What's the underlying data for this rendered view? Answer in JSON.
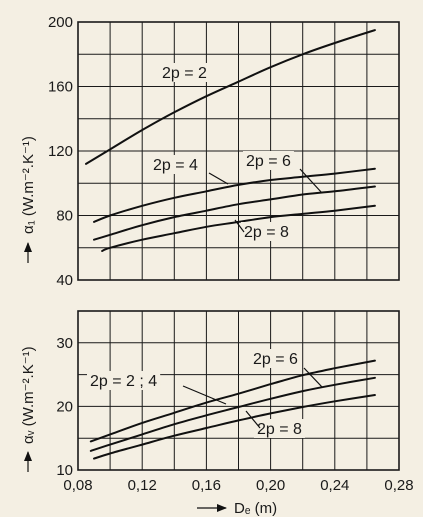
{
  "chart_data": [
    {
      "type": "line",
      "ylabel": "α₁ (W.m⁻².K⁻¹)",
      "ylim": [
        40,
        200
      ],
      "yticks": [
        40,
        80,
        120,
        160,
        200
      ],
      "xlim": [
        0.08,
        0.28
      ],
      "grid": true,
      "series": [
        {
          "name": "2p = 2",
          "x": [
            0.085,
            0.1,
            0.12,
            0.14,
            0.16,
            0.18,
            0.2,
            0.22,
            0.24,
            0.265
          ],
          "values": [
            112,
            121,
            133,
            144,
            154,
            163,
            172,
            180,
            187,
            195
          ]
        },
        {
          "name": "2p = 4",
          "x": [
            0.09,
            0.1,
            0.12,
            0.14,
            0.16,
            0.18,
            0.2,
            0.22,
            0.24,
            0.265
          ],
          "values": [
            76,
            80,
            86,
            91,
            95,
            99,
            102,
            104,
            106,
            109
          ]
        },
        {
          "name": "2p = 6",
          "x": [
            0.09,
            0.1,
            0.12,
            0.14,
            0.16,
            0.18,
            0.2,
            0.22,
            0.24,
            0.265
          ],
          "values": [
            65,
            68,
            74,
            79,
            83,
            87,
            90,
            93,
            95,
            98
          ]
        },
        {
          "name": "2p = 8",
          "x": [
            0.095,
            0.1,
            0.12,
            0.14,
            0.16,
            0.18,
            0.2,
            0.22,
            0.24,
            0.265
          ],
          "values": [
            58,
            60,
            65,
            69,
            73,
            76,
            79,
            81,
            83,
            86
          ]
        }
      ]
    },
    {
      "type": "line",
      "xlabel": "Dₑ (m)",
      "ylabel": "αᵥ (W.m⁻².K⁻¹)",
      "ylim": [
        10,
        35
      ],
      "yticks": [
        10,
        20,
        30
      ],
      "xlim": [
        0.08,
        0.28
      ],
      "xticks": [
        "0,08",
        "0,12",
        "0,16",
        "0,20",
        "0,24",
        "0,28"
      ],
      "xtick_values": [
        0.08,
        0.12,
        0.16,
        0.2,
        0.24,
        0.28
      ],
      "grid": true,
      "series": [
        {
          "name": "2p = 2 ; 4",
          "x": [
            0.088,
            0.1,
            0.12,
            0.14,
            0.16,
            0.18,
            0.2,
            0.22,
            0.24,
            0.265
          ],
          "values": [
            14.5,
            15.6,
            17.4,
            19.0,
            20.6,
            22.0,
            23.5,
            24.9,
            26.0,
            27.2
          ]
        },
        {
          "name": "2p = 6",
          "x": [
            0.088,
            0.1,
            0.12,
            0.14,
            0.16,
            0.18,
            0.2,
            0.22,
            0.24,
            0.265
          ],
          "values": [
            13.0,
            14.0,
            15.6,
            17.2,
            18.6,
            19.9,
            21.2,
            22.4,
            23.4,
            24.5
          ]
        },
        {
          "name": "2p = 8",
          "x": [
            0.09,
            0.1,
            0.12,
            0.14,
            0.16,
            0.18,
            0.2,
            0.22,
            0.24,
            0.265
          ],
          "values": [
            11.8,
            12.6,
            14.0,
            15.4,
            16.6,
            17.8,
            18.9,
            19.9,
            20.8,
            21.8
          ]
        }
      ]
    }
  ],
  "arrow_glyph": "→"
}
